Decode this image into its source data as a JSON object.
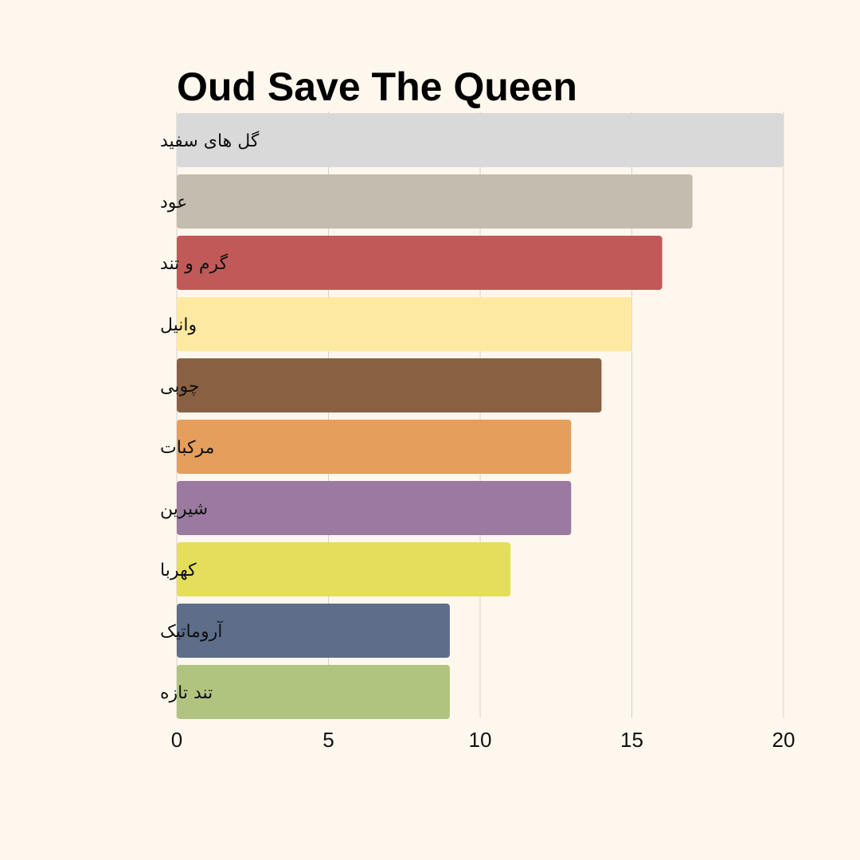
{
  "chart_data": {
    "type": "bar",
    "orientation": "horizontal",
    "title": "Oud Save The Queen",
    "xlabel": "",
    "ylabel": "",
    "xlim": [
      0,
      20
    ],
    "x_ticks": [
      0,
      5,
      10,
      15,
      20
    ],
    "grid": true,
    "legend": "none",
    "categories": [
      "گل های سفید",
      "عود",
      "گرم و تند",
      "وانیل",
      "چوبی",
      "مرکبات",
      "شیرین",
      "کهربا",
      "آروماتیک",
      "تند تازه"
    ],
    "values": [
      20,
      17,
      16,
      15,
      14,
      13,
      13,
      11,
      9,
      9
    ],
    "colors": [
      "#d9d9d9",
      "#c4bcaf",
      "#c25959",
      "#fde9a1",
      "#8a6042",
      "#e59f5c",
      "#9a7a9f",
      "#e3de5b",
      "#5d6d8a",
      "#b0c47f"
    ]
  }
}
